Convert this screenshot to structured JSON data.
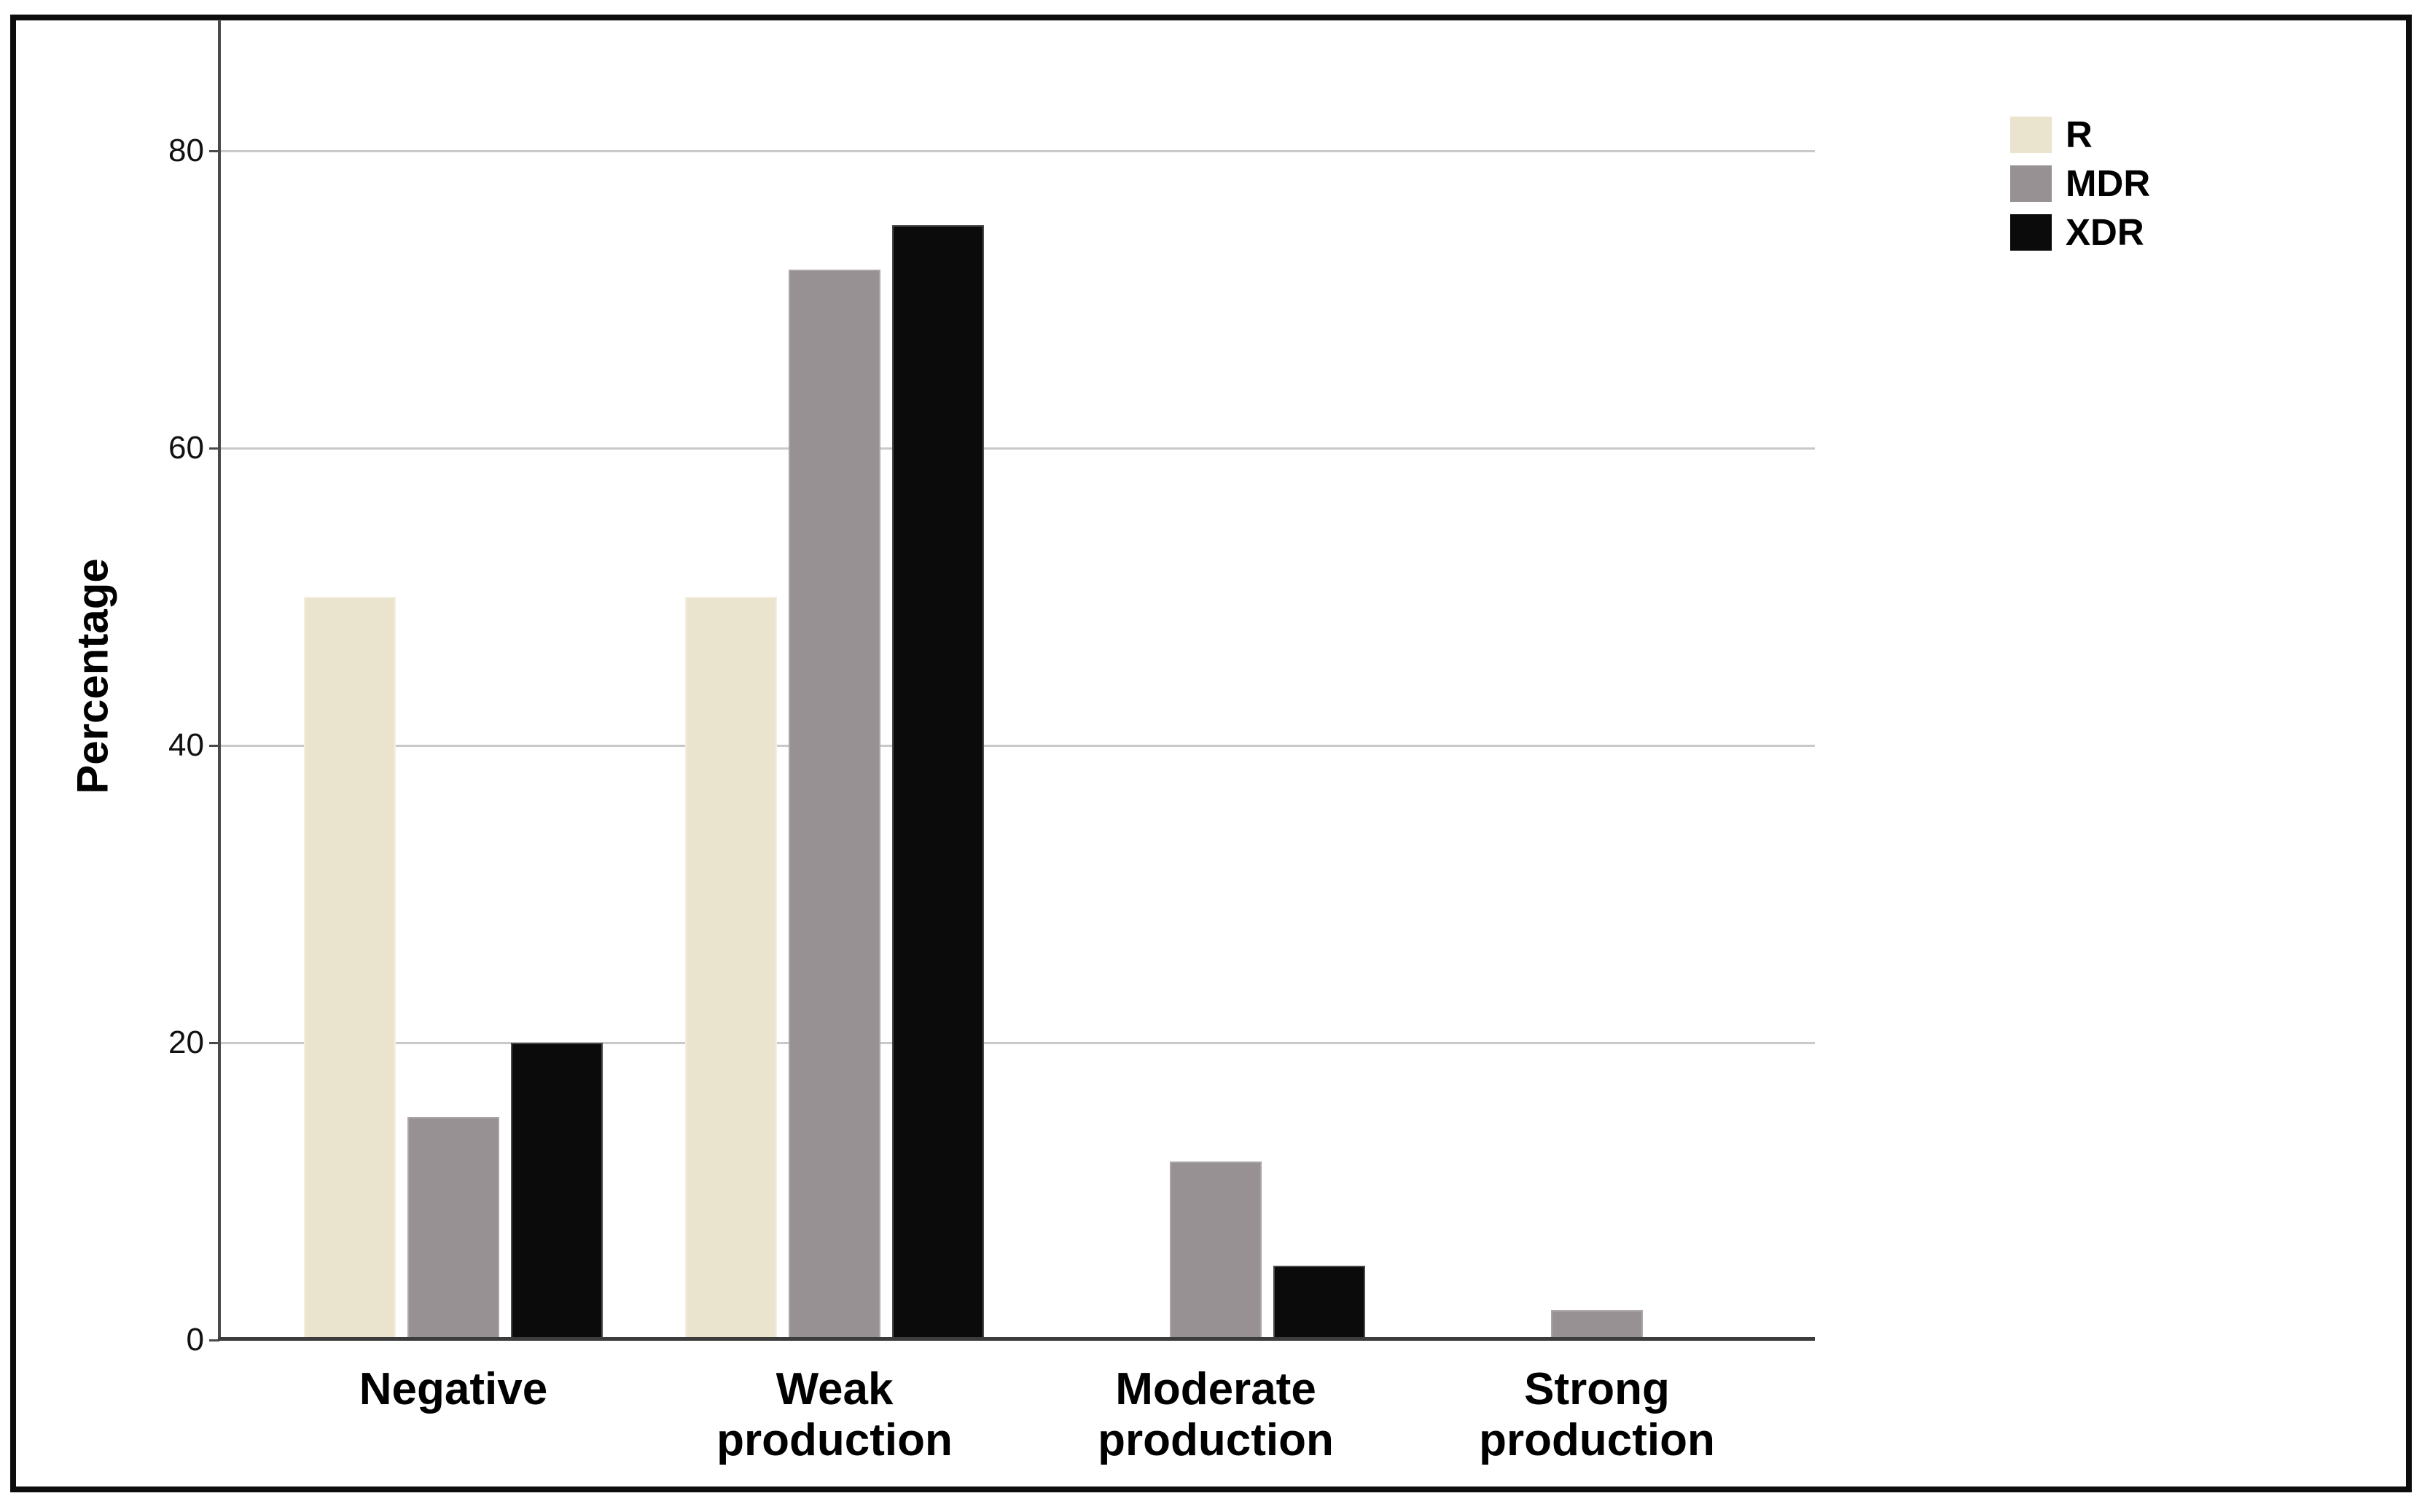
{
  "chart_data": {
    "type": "bar",
    "title": "",
    "xlabel": "",
    "ylabel": "Percentage",
    "categories": [
      "Negative",
      "Weak production",
      "Moderate production",
      "Strong production"
    ],
    "series": [
      {
        "name": "R",
        "color": "#eae4cf",
        "border_color": "#f3efe0",
        "values": [
          50,
          50,
          0,
          0
        ]
      },
      {
        "name": "MDR",
        "color": "#979193",
        "border_color": "#aba5a7",
        "values": [
          15,
          72,
          12,
          2
        ]
      },
      {
        "name": "XDR",
        "color": "#0b0b0b",
        "border_color": "#4a4a4a",
        "values": [
          20,
          75,
          5,
          0
        ]
      }
    ],
    "y_ticks": [
      0,
      20,
      40,
      60,
      80
    ],
    "ylim": [
      0,
      88
    ],
    "grid": "horizontal lines at y ticks",
    "legend_position": "top-right",
    "units": "percent"
  },
  "colors": {
    "background": "#ffffff",
    "figure_border": "#0d0d0d",
    "gridline": "#c9c9c9",
    "axis_line": "#4a4a4a",
    "baseline": "#3c3c3c",
    "text": "#000000"
  }
}
